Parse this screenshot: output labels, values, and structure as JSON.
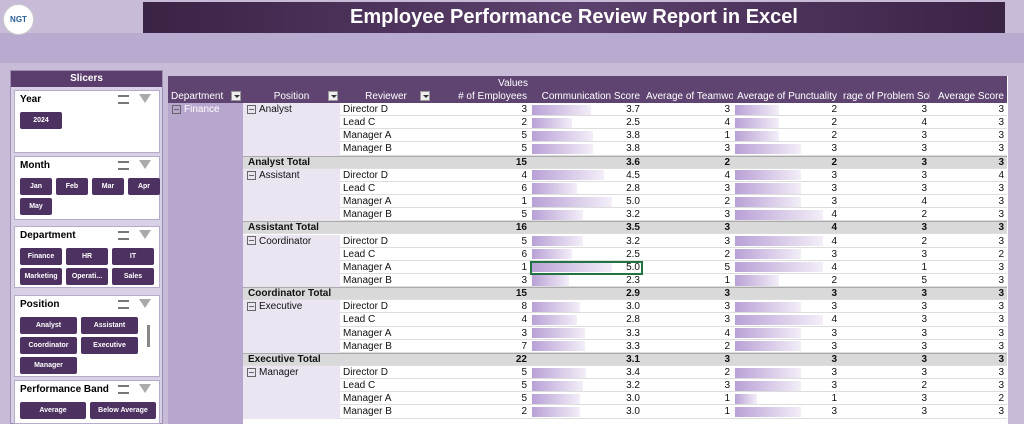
{
  "header": {
    "logo": "NGT",
    "title": "Employee Performance Review Report in Excel"
  },
  "slicers": {
    "title": "Slicers",
    "groups": [
      {
        "name": "Year",
        "items": [
          "2024"
        ]
      },
      {
        "name": "Month",
        "items": [
          "Jan",
          "Feb",
          "Mar",
          "Apr",
          "May"
        ]
      },
      {
        "name": "Department",
        "items": [
          "Finance",
          "HR",
          "IT",
          "Marketing",
          "Operati...",
          "Sales"
        ]
      },
      {
        "name": "Position",
        "items": [
          "Analyst",
          "Assistant",
          "Coordinator",
          "Executive",
          "Manager"
        ]
      },
      {
        "name": "Performance Band",
        "items": [
          "Average",
          "Below Average"
        ]
      }
    ]
  },
  "table": {
    "values_label": "Values",
    "columns": [
      "Department",
      "Position",
      "Reviewer",
      "# of Employees",
      "Communication Score",
      "Average of Teamwork",
      "Average of Punctuality",
      "rage of Problem Solving",
      "Average Score"
    ],
    "department": "Finance",
    "groups": [
      {
        "position": "Analyst",
        "rows": [
          [
            "Director D",
            "3",
            "3.7",
            "3",
            "2",
            "3",
            "3"
          ],
          [
            "Lead C",
            "2",
            "2.5",
            "4",
            "2",
            "4",
            "3"
          ],
          [
            "Manager A",
            "5",
            "3.8",
            "1",
            "2",
            "3",
            "3"
          ],
          [
            "Manager B",
            "5",
            "3.8",
            "3",
            "3",
            "3",
            "3"
          ]
        ],
        "total": [
          "Analyst Total",
          "15",
          "3.6",
          "2",
          "2",
          "3",
          "3"
        ]
      },
      {
        "position": "Assistant",
        "rows": [
          [
            "Director D",
            "4",
            "4.5",
            "4",
            "3",
            "3",
            "4"
          ],
          [
            "Lead C",
            "6",
            "2.8",
            "3",
            "3",
            "3",
            "3"
          ],
          [
            "Manager A",
            "1",
            "5.0",
            "2",
            "3",
            "4",
            "3"
          ],
          [
            "Manager B",
            "5",
            "3.2",
            "3",
            "4",
            "2",
            "3"
          ]
        ],
        "total": [
          "Assistant Total",
          "16",
          "3.5",
          "3",
          "4",
          "3",
          "3"
        ]
      },
      {
        "position": "Coordinator",
        "rows": [
          [
            "Director D",
            "5",
            "3.2",
            "3",
            "4",
            "2",
            "3"
          ],
          [
            "Lead C",
            "6",
            "2.5",
            "2",
            "3",
            "3",
            "2"
          ],
          [
            "Manager A",
            "1",
            "5.0",
            "5",
            "4",
            "1",
            "3"
          ],
          [
            "Manager B",
            "3",
            "2.3",
            "1",
            "2",
            "5",
            "3"
          ]
        ],
        "total": [
          "Coordinator Total",
          "15",
          "2.9",
          "3",
          "3",
          "3",
          "3"
        ]
      },
      {
        "position": "Executive",
        "rows": [
          [
            "Director D",
            "8",
            "3.0",
            "3",
            "3",
            "3",
            "3"
          ],
          [
            "Lead C",
            "4",
            "2.8",
            "3",
            "4",
            "3",
            "3"
          ],
          [
            "Manager A",
            "3",
            "3.3",
            "4",
            "3",
            "3",
            "3"
          ],
          [
            "Manager B",
            "7",
            "3.3",
            "2",
            "3",
            "3",
            "3"
          ]
        ],
        "total": [
          "Executive Total",
          "22",
          "3.1",
          "3",
          "3",
          "3",
          "3"
        ]
      },
      {
        "position": "Manager",
        "rows": [
          [
            "Director D",
            "5",
            "3.4",
            "2",
            "3",
            "3",
            "3"
          ],
          [
            "Lead C",
            "5",
            "3.2",
            "3",
            "3",
            "2",
            "3"
          ],
          [
            "Manager A",
            "5",
            "3.0",
            "1",
            "1",
            "3",
            "2"
          ],
          [
            "Manager B",
            "2",
            "3.0",
            "1",
            "3",
            "3",
            "3"
          ]
        ]
      }
    ]
  }
}
